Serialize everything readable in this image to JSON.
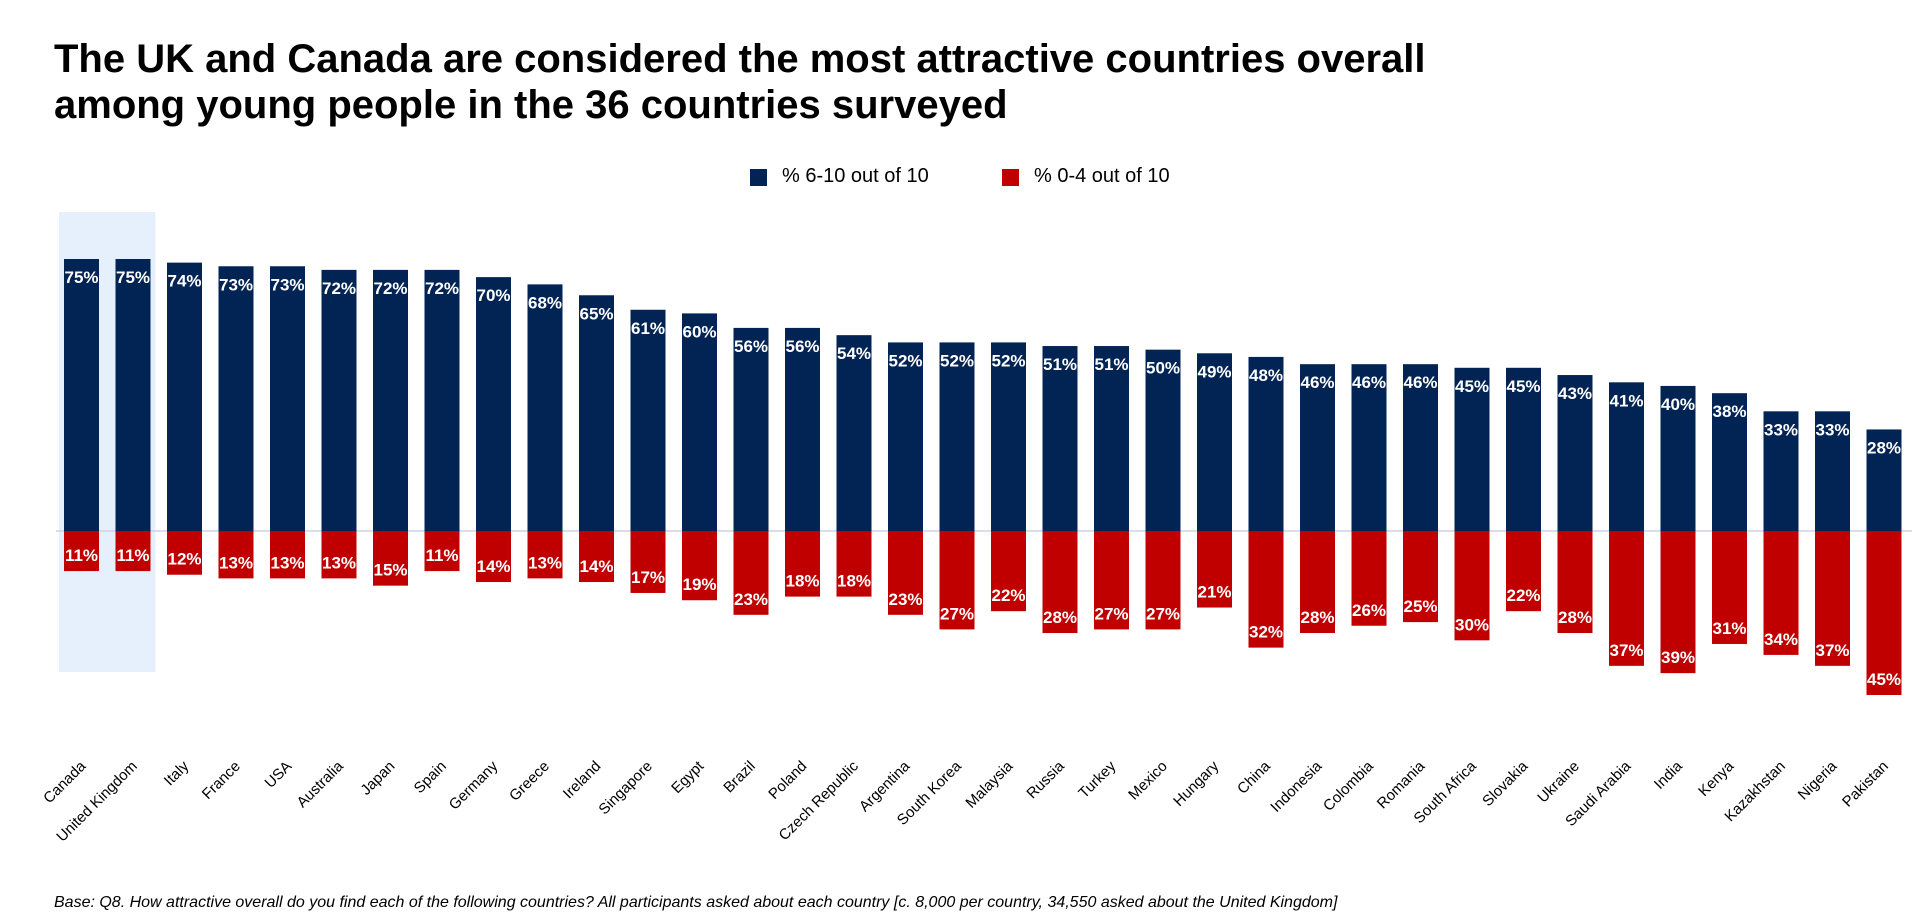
{
  "title_line1": "The UK and Canada are considered the most attractive countries overall",
  "title_line2": "among young people in the 36 countries surveyed",
  "footnote": "Base: Q8. How attractive overall do you find each of the following countries? All participants asked about each country [c. 8,000 per country, 34,550 asked about the United Kingdom]",
  "colors": {
    "positive": "#022454",
    "negative": "#c00000",
    "highlight": "#e6f0fc",
    "label": "#ffffff",
    "axis": "#cfd4de"
  },
  "legend": [
    {
      "label": "% 6-10 out of 10",
      "color": "#022454"
    },
    {
      "label": "% 0-4 out of 10",
      "color": "#c00000"
    }
  ],
  "chart_data": {
    "type": "bar",
    "categories": [
      "Canada",
      "United Kingdom",
      "Italy",
      "France",
      "USA",
      "Australia",
      "Japan",
      "Spain",
      "Germany",
      "Greece",
      "Ireland",
      "Singapore",
      "Egypt",
      "Brazil",
      "Poland",
      "Czech Republic",
      "Argentina",
      "South Korea",
      "Malaysia",
      "Russia",
      "Turkey",
      "Mexico",
      "Hungary",
      "China",
      "Indonesia",
      "Colombia",
      "Romania",
      "South Africa",
      "Slovakia",
      "Ukraine",
      "Saudi Arabia",
      "India",
      "Kenya",
      "Kazakhstan",
      "Nigeria",
      "Pakistan"
    ],
    "series": [
      {
        "name": "% 6-10 out of 10",
        "direction": "up",
        "values": [
          75,
          75,
          74,
          73,
          73,
          72,
          72,
          72,
          70,
          68,
          65,
          61,
          60,
          56,
          56,
          54,
          52,
          52,
          52,
          51,
          51,
          50,
          49,
          48,
          46,
          46,
          46,
          45,
          45,
          43,
          41,
          40,
          38,
          33,
          33,
          28
        ]
      },
      {
        "name": "% 0-4 out of 10",
        "direction": "down",
        "values": [
          11,
          11,
          12,
          13,
          13,
          13,
          15,
          11,
          14,
          13,
          14,
          17,
          19,
          23,
          18,
          18,
          23,
          27,
          22,
          28,
          27,
          27,
          21,
          32,
          28,
          26,
          25,
          30,
          22,
          28,
          37,
          39,
          31,
          34,
          37,
          45
        ]
      }
    ],
    "value_suffix": "%",
    "highlighted_categories": [
      "Canada",
      "United Kingdom"
    ],
    "ylim": [
      -45,
      75
    ],
    "grid": false,
    "legend_position": "top"
  }
}
